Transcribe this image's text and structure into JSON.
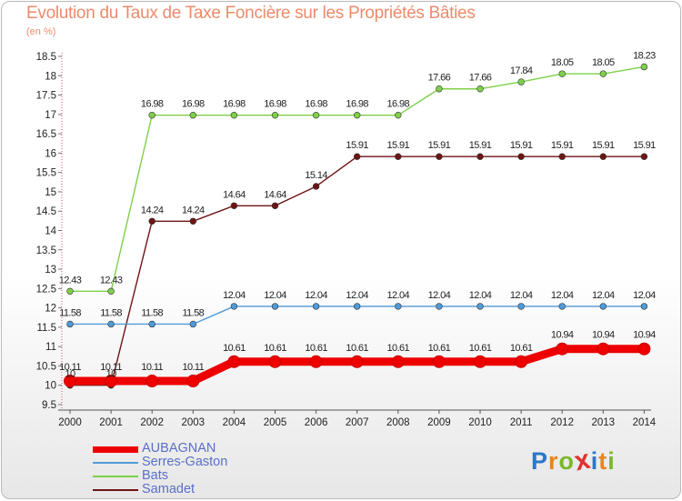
{
  "page": {
    "title": "Evolution du Taux de Taxe Foncière sur les Propriétés Bâties",
    "unit": "(en %)"
  },
  "brand": {
    "letters": [
      "P",
      "r",
      "o",
      "x",
      "i",
      "t",
      "i"
    ],
    "colors": [
      "#2a78c8",
      "#e8851e",
      "#7bb829",
      "#e03131",
      "#2a78c8",
      "#e8851e",
      "#7bb829"
    ]
  },
  "chart_data": {
    "type": "line",
    "title": "Evolution du Taux de Taxe Foncière sur les Propriétés Bâties",
    "ylabel": "(en %)",
    "xlabel": "",
    "x": [
      "2000",
      "2001",
      "2002",
      "2003",
      "2004",
      "2005",
      "2006",
      "2007",
      "2008",
      "2009",
      "2010",
      "2011",
      "2012",
      "2013",
      "2014"
    ],
    "ylim": [
      9.5,
      18.5
    ],
    "yticks": [
      "9.5",
      "10",
      "10.5",
      "11",
      "11.5",
      "12",
      "12.5",
      "13",
      "13.5",
      "14",
      "14.5",
      "15",
      "15.5",
      "16",
      "16.5",
      "17",
      "17.5",
      "18",
      "18.5"
    ],
    "grid": false,
    "legend_position": "bottom-left",
    "series": [
      {
        "name": "AUBAGNAN",
        "color": "#ee0000",
        "values": [
          10.11,
          10.11,
          10.11,
          10.11,
          10.61,
          10.61,
          10.61,
          10.61,
          10.61,
          10.61,
          10.61,
          10.61,
          10.94,
          10.94,
          10.94
        ],
        "labels": [
          "10.11",
          "10.11",
          "10.11",
          "10.11",
          "10.61",
          "10.61",
          "10.61",
          "10.61",
          "10.61",
          "10.61",
          "10.61",
          "10.61",
          "10.94",
          "10.94",
          "10.94"
        ]
      },
      {
        "name": "Serres-Gaston",
        "color": "#4f9ad8",
        "values": [
          11.58,
          11.58,
          11.58,
          11.58,
          12.04,
          12.04,
          12.04,
          12.04,
          12.04,
          12.04,
          12.04,
          12.04,
          12.04,
          12.04,
          12.04
        ],
        "labels": [
          "11.58",
          "11.58",
          "11.58",
          "11.58",
          "12.04",
          "12.04",
          "12.04",
          "12.04",
          "12.04",
          "12.04",
          "12.04",
          "12.04",
          "12.04",
          "12.04",
          "12.04"
        ]
      },
      {
        "name": "Bats",
        "color": "#7ed04a",
        "values": [
          12.43,
          12.43,
          16.98,
          16.98,
          16.98,
          16.98,
          16.98,
          16.98,
          16.98,
          17.66,
          17.66,
          17.84,
          18.05,
          18.05,
          18.23
        ],
        "labels": [
          "12.43",
          "12.43",
          "16.98",
          "16.98",
          "16.98",
          "16.98",
          "16.98",
          "16.98",
          "16.98",
          "17.66",
          "17.66",
          "17.84",
          "18.05",
          "18.05",
          "18.23"
        ]
      },
      {
        "name": "Samadet",
        "color": "#6e1414",
        "values": [
          10,
          10,
          14.24,
          14.24,
          14.64,
          14.64,
          15.14,
          15.91,
          15.91,
          15.91,
          15.91,
          15.91,
          15.91,
          15.91,
          15.91
        ],
        "labels": [
          "10",
          "10",
          "14.24",
          "14.24",
          "14.64",
          "14.64",
          "15.14",
          "15.91",
          "15.91",
          "15.91",
          "15.91",
          "15.91",
          "15.91",
          "15.91",
          "15.91"
        ]
      }
    ]
  }
}
